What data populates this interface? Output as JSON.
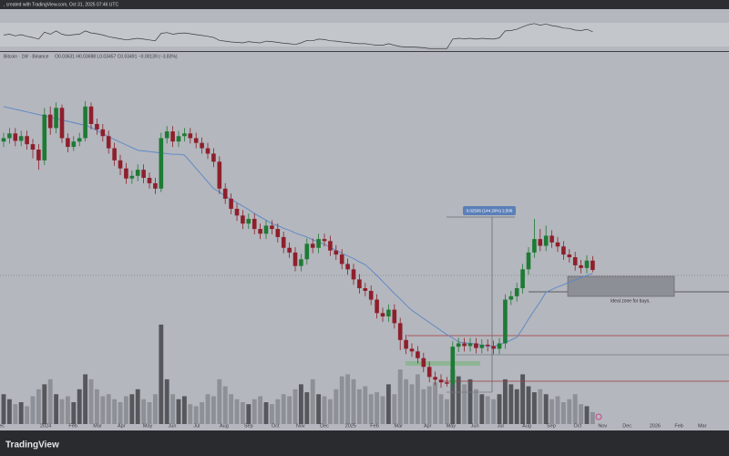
{
  "header": {
    "source": ", created with TradingView.com, Oct 31, 2025 07:46 UTC",
    "logo": "TradingView"
  },
  "chart_data": {
    "type": "candlestick",
    "symbol": "Bitcoin · 1W · Binance",
    "ohlc_legend": "O0.03631 H0.03698 L0.03457 C0.03491 −0.00139 (−3.83%)",
    "up_color": "#1e7a35",
    "down_color": "#8e1f2c",
    "xlim": [
      -0.625,
      124.375
    ],
    "ylim": [
      0.012,
      0.0669
    ],
    "xticks": [
      {
        "value": -0.6,
        "label": "Dec"
      },
      {
        "value": 7.2,
        "label": "2024"
      },
      {
        "value": 11.9,
        "label": "Feb"
      },
      {
        "value": 16.1,
        "label": "Mar"
      },
      {
        "value": 20.2,
        "label": "Apr"
      },
      {
        "value": 24.7,
        "label": "May"
      },
      {
        "value": 28.9,
        "label": "Jun"
      },
      {
        "value": 33.1,
        "label": "Jul"
      },
      {
        "value": 37.8,
        "label": "Aug"
      },
      {
        "value": 42.0,
        "label": "Sep"
      },
      {
        "value": 46.6,
        "label": "Oct"
      },
      {
        "value": 50.9,
        "label": "Nov"
      },
      {
        "value": 55.0,
        "label": "Dec"
      },
      {
        "value": 59.5,
        "label": "2025"
      },
      {
        "value": 63.6,
        "label": "Feb"
      },
      {
        "value": 67.7,
        "label": "Mar"
      },
      {
        "value": 72.7,
        "label": "Apr"
      },
      {
        "value": 76.7,
        "label": "May"
      },
      {
        "value": 80.8,
        "label": "Jun"
      },
      {
        "value": 85.2,
        "label": "Jul"
      },
      {
        "value": 89.7,
        "label": "Aug"
      },
      {
        "value": 93.9,
        "label": "Sep"
      },
      {
        "value": 98.4,
        "label": "Oct"
      },
      {
        "value": 102.7,
        "label": "Nov"
      },
      {
        "value": 106.9,
        "label": "Dec"
      },
      {
        "value": 111.7,
        "label": "2026"
      },
      {
        "value": 115.8,
        "label": "Feb"
      },
      {
        "value": 119.8,
        "label": "Mar"
      }
    ],
    "open": [
      0.054,
      0.0545,
      0.0552,
      0.0541,
      0.0548,
      0.0536,
      0.0528,
      0.0512,
      0.058,
      0.056,
      0.059,
      0.0545,
      0.0532,
      0.054,
      0.0545,
      0.0592,
      0.0566,
      0.0558,
      0.0548,
      0.053,
      0.0512,
      0.05,
      0.0485,
      0.0489,
      0.0498,
      0.0486,
      0.0478,
      0.047,
      0.0545,
      0.0555,
      0.054,
      0.0548,
      0.0552,
      0.0545,
      0.0538,
      0.053,
      0.0522,
      0.051,
      0.047,
      0.0455,
      0.044,
      0.043,
      0.0418,
      0.0425,
      0.041,
      0.0403,
      0.0415,
      0.041,
      0.0398,
      0.0382,
      0.0375,
      0.0355,
      0.0365,
      0.0388,
      0.0382,
      0.0395,
      0.0392,
      0.0378,
      0.0372,
      0.0358,
      0.035,
      0.0335,
      0.0322,
      0.0318,
      0.0305,
      0.0285,
      0.028,
      0.029,
      0.027,
      0.0245,
      0.0232,
      0.0228,
      0.0218,
      0.0205,
      0.019,
      0.0186,
      0.0182,
      0.018,
      0.0235,
      0.024,
      0.0236,
      0.024,
      0.0233,
      0.0238,
      0.0236,
      0.0232,
      0.024,
      0.0305,
      0.031,
      0.0322,
      0.035,
      0.0375,
      0.0395,
      0.0385,
      0.04,
      0.039,
      0.0384,
      0.0372,
      0.0368,
      0.0356,
      0.0352,
      0.0363
    ],
    "high": [
      0.0553,
      0.056,
      0.056,
      0.0556,
      0.0556,
      0.0544,
      0.0536,
      0.059,
      0.0592,
      0.0598,
      0.0595,
      0.0552,
      0.0548,
      0.0553,
      0.06,
      0.0598,
      0.0574,
      0.0566,
      0.0556,
      0.0538,
      0.052,
      0.0508,
      0.0497,
      0.0506,
      0.0506,
      0.0494,
      0.0486,
      0.0553,
      0.0563,
      0.0563,
      0.0556,
      0.056,
      0.056,
      0.0553,
      0.0546,
      0.0538,
      0.053,
      0.0518,
      0.0478,
      0.0463,
      0.0448,
      0.0438,
      0.0433,
      0.0433,
      0.0418,
      0.0423,
      0.0423,
      0.0418,
      0.0406,
      0.039,
      0.0383,
      0.0373,
      0.0396,
      0.0396,
      0.0403,
      0.0403,
      0.04,
      0.0386,
      0.038,
      0.0366,
      0.0358,
      0.0343,
      0.033,
      0.0326,
      0.0313,
      0.0293,
      0.0298,
      0.0298,
      0.0278,
      0.0253,
      0.024,
      0.0236,
      0.0226,
      0.0213,
      0.0198,
      0.0194,
      0.019,
      0.0243,
      0.0248,
      0.0248,
      0.0248,
      0.0248,
      0.0246,
      0.0246,
      0.0244,
      0.0248,
      0.0313,
      0.0318,
      0.033,
      0.0358,
      0.0383,
      0.0425,
      0.041,
      0.0415,
      0.0408,
      0.0398,
      0.0392,
      0.038,
      0.0376,
      0.0364,
      0.0371,
      0.03698
    ],
    "low": [
      0.0532,
      0.0537,
      0.0533,
      0.0533,
      0.0528,
      0.0515,
      0.0498,
      0.0505,
      0.055,
      0.0552,
      0.0538,
      0.0524,
      0.0526,
      0.0533,
      0.054,
      0.0558,
      0.055,
      0.054,
      0.0522,
      0.0504,
      0.049,
      0.0477,
      0.0477,
      0.0481,
      0.0478,
      0.047,
      0.0462,
      0.0465,
      0.0537,
      0.0532,
      0.0532,
      0.054,
      0.0537,
      0.053,
      0.0522,
      0.0514,
      0.0502,
      0.0462,
      0.0447,
      0.0432,
      0.0422,
      0.041,
      0.041,
      0.0402,
      0.0395,
      0.0395,
      0.0402,
      0.039,
      0.0374,
      0.0367,
      0.0347,
      0.0347,
      0.0357,
      0.0374,
      0.0374,
      0.0384,
      0.037,
      0.0364,
      0.035,
      0.0342,
      0.0327,
      0.0314,
      0.031,
      0.0297,
      0.0277,
      0.0272,
      0.0272,
      0.0262,
      0.023,
      0.0224,
      0.022,
      0.021,
      0.0197,
      0.0182,
      0.0178,
      0.0174,
      0.0176,
      0.0175,
      0.0227,
      0.0228,
      0.0228,
      0.0225,
      0.0225,
      0.0228,
      0.0224,
      0.0224,
      0.0232,
      0.0297,
      0.0302,
      0.0314,
      0.0342,
      0.0367,
      0.0377,
      0.0377,
      0.0382,
      0.0376,
      0.0364,
      0.036,
      0.0348,
      0.0344,
      0.0344,
      0.03457
    ],
    "close": [
      0.0545,
      0.0552,
      0.0541,
      0.0548,
      0.0536,
      0.0528,
      0.0512,
      0.058,
      0.056,
      0.059,
      0.0545,
      0.0532,
      0.054,
      0.0545,
      0.0592,
      0.0566,
      0.0558,
      0.0548,
      0.053,
      0.0512,
      0.05,
      0.0485,
      0.0489,
      0.0498,
      0.0486,
      0.0478,
      0.047,
      0.0545,
      0.0555,
      0.054,
      0.0548,
      0.0552,
      0.0545,
      0.0538,
      0.053,
      0.0522,
      0.051,
      0.047,
      0.0455,
      0.044,
      0.043,
      0.0418,
      0.0425,
      0.041,
      0.0403,
      0.0415,
      0.041,
      0.0398,
      0.0382,
      0.0375,
      0.0355,
      0.0365,
      0.0388,
      0.0382,
      0.0395,
      0.0392,
      0.0378,
      0.0372,
      0.0358,
      0.035,
      0.0335,
      0.0322,
      0.0318,
      0.0305,
      0.0285,
      0.028,
      0.029,
      0.027,
      0.0245,
      0.0232,
      0.0228,
      0.0218,
      0.0205,
      0.019,
      0.0186,
      0.0182,
      0.018,
      0.0235,
      0.024,
      0.0236,
      0.024,
      0.0233,
      0.0238,
      0.0236,
      0.0232,
      0.024,
      0.0305,
      0.031,
      0.0322,
      0.035,
      0.0375,
      0.0395,
      0.0385,
      0.04,
      0.039,
      0.0384,
      0.0372,
      0.0368,
      0.0356,
      0.0352,
      0.0363,
      0.03491
    ],
    "moving_average": {
      "color": "#5a86c8",
      "values": [
        0.0592,
        0.059,
        0.0588,
        0.0586,
        0.0584,
        0.0582,
        0.058,
        0.0578,
        0.0576,
        0.0574,
        0.0572,
        0.057,
        0.0568,
        0.0566,
        0.0564,
        0.0561,
        0.0556,
        0.0552,
        0.0547,
        0.0543,
        0.0539,
        0.0535,
        0.0531,
        0.0527,
        0.0526,
        0.0525,
        0.0524,
        0.0523,
        0.0522,
        0.0521,
        0.0521,
        0.052,
        0.051,
        0.05,
        0.049,
        0.048,
        0.047,
        0.0465,
        0.0459,
        0.0454,
        0.0449,
        0.0444,
        0.0439,
        0.0433,
        0.0428,
        0.0423,
        0.0418,
        0.0415,
        0.0411,
        0.0408,
        0.0404,
        0.0401,
        0.0398,
        0.0394,
        0.0391,
        0.0387,
        0.0383,
        0.0378,
        0.0374,
        0.037,
        0.0366,
        0.0361,
        0.0357,
        0.0349,
        0.0341,
        0.0332,
        0.0323,
        0.0314,
        0.0306,
        0.0297,
        0.0289,
        0.0283,
        0.0277,
        0.0271,
        0.0265,
        0.0259,
        0.0253,
        0.0248,
        0.0242,
        0.0241,
        0.024,
        0.0239,
        0.0237,
        0.0236,
        0.0235,
        0.0238,
        0.0241,
        0.0245,
        0.0249,
        0.0262,
        0.0276,
        0.0289,
        0.0302,
        0.0316,
        0.032,
        0.0324,
        0.0327,
        0.0331,
        0.0334,
        0.0338,
        0.0341,
        0.0344
      ]
    },
    "volume": {
      "ylim": [
        0,
        110
      ],
      "up_color": "#55575c",
      "down_color": "#8d9096",
      "values": [
        30,
        25,
        20,
        22,
        18,
        28,
        35,
        40,
        45,
        30,
        25,
        28,
        22,
        35,
        50,
        45,
        35,
        28,
        30,
        25,
        22,
        28,
        30,
        35,
        25,
        22,
        30,
        100,
        45,
        30,
        25,
        28,
        20,
        18,
        22,
        30,
        28,
        45,
        38,
        30,
        25,
        22,
        20,
        25,
        28,
        22,
        20,
        25,
        30,
        28,
        35,
        40,
        32,
        45,
        30,
        28,
        25,
        35,
        48,
        50,
        45,
        35,
        38,
        30,
        32,
        28,
        40,
        30,
        55,
        45,
        40,
        50,
        35,
        38,
        42,
        30,
        25,
        55,
        48,
        40,
        45,
        35,
        30,
        28,
        25,
        30,
        45,
        40,
        35,
        50,
        38,
        32,
        35,
        30,
        25,
        28,
        22,
        25,
        30,
        20,
        18,
        12
      ]
    },
    "rsi": {
      "ylim": [
        0,
        100
      ],
      "color": "#3a3c40",
      "values": [
        48,
        50,
        46,
        49,
        45,
        42,
        38,
        55,
        50,
        58,
        50,
        47,
        49,
        50,
        58,
        53,
        51,
        48,
        44,
        41,
        39,
        36,
        38,
        40,
        38,
        36,
        34,
        52,
        54,
        50,
        52,
        53,
        51,
        49,
        47,
        45,
        42,
        35,
        33,
        31,
        30,
        29,
        32,
        30,
        29,
        33,
        32,
        30,
        28,
        27,
        25,
        29,
        35,
        34,
        38,
        37,
        34,
        33,
        31,
        30,
        28,
        27,
        27,
        25,
        23,
        23,
        27,
        23,
        20,
        19,
        19,
        18,
        17,
        15,
        15,
        15,
        15,
        38,
        40,
        39,
        40,
        38,
        40,
        39,
        38,
        41,
        58,
        59,
        62,
        68,
        73,
        76,
        72,
        75,
        71,
        69,
        65,
        64,
        60,
        59,
        62,
        56
      ]
    },
    "annotations": {
      "measure": "0.02506 (144.29%) 2,506",
      "zone": "Ideal zone for buys."
    }
  }
}
